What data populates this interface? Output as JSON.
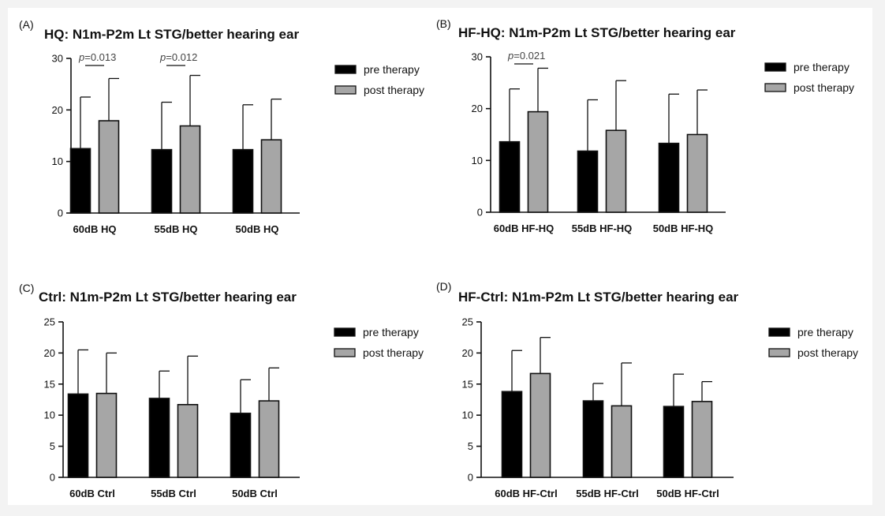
{
  "colors": {
    "pre": "#000000",
    "post": "#a6a6a6",
    "axis": "#111111"
  },
  "chart_data": [
    {
      "type": "bar",
      "panel": "(A)",
      "title": "HQ: N1m-P2m Lt STG/better hearing ear",
      "categories": [
        "60dB HQ",
        "55dB HQ",
        "50dB HQ"
      ],
      "ylim": [
        0,
        30
      ],
      "yticks": [
        0,
        10,
        20,
        30
      ],
      "legend_position": "top-right",
      "series": [
        {
          "name": "pre therapy",
          "values": [
            12.5,
            12.3,
            12.3
          ],
          "error": [
            10.0,
            9.2,
            8.7
          ]
        },
        {
          "name": "post therapy",
          "values": [
            17.9,
            16.9,
            14.2
          ],
          "error": [
            8.2,
            9.8,
            7.9
          ]
        }
      ],
      "annotations": [
        {
          "category_index": 0,
          "text_prefix": "p",
          "text": "=0.013"
        },
        {
          "category_index": 1,
          "text_prefix": "p",
          "text": "=0.012"
        }
      ]
    },
    {
      "type": "bar",
      "panel": "(B)",
      "title": "HF-HQ: N1m-P2m Lt STG/better hearing ear",
      "categories": [
        "60dB HF-HQ",
        "55dB HF-HQ",
        "50dB HF-HQ"
      ],
      "ylim": [
        0,
        30
      ],
      "yticks": [
        0,
        10,
        20,
        30
      ],
      "legend_position": "top-right",
      "series": [
        {
          "name": "pre therapy",
          "values": [
            13.6,
            11.8,
            13.3
          ],
          "error": [
            10.2,
            9.9,
            9.5
          ]
        },
        {
          "name": "post therapy",
          "values": [
            19.4,
            15.8,
            15.0
          ],
          "error": [
            8.4,
            9.6,
            8.6
          ]
        }
      ],
      "annotations": [
        {
          "category_index": 0,
          "text_prefix": "p",
          "text": "=0.021"
        }
      ]
    },
    {
      "type": "bar",
      "panel": "(C)",
      "title": "Ctrl: N1m-P2m Lt STG/better hearing ear",
      "categories": [
        "60dB Ctrl",
        "55dB Ctrl",
        "50dB Ctrl"
      ],
      "ylim": [
        0,
        25
      ],
      "yticks": [
        0,
        5,
        10,
        15,
        20,
        25
      ],
      "legend_position": "top-right",
      "series": [
        {
          "name": "pre therapy",
          "values": [
            13.4,
            12.7,
            10.3
          ],
          "error": [
            7.1,
            4.4,
            5.4
          ]
        },
        {
          "name": "post therapy",
          "values": [
            13.5,
            11.7,
            12.3
          ],
          "error": [
            6.5,
            7.8,
            5.3
          ]
        }
      ],
      "annotations": []
    },
    {
      "type": "bar",
      "panel": "(D)",
      "title": "HF-Ctrl: N1m-P2m Lt STG/better hearing ear",
      "categories": [
        "60dB HF-Ctrl",
        "55dB HF-Ctrl",
        "50dB HF-Ctrl"
      ],
      "ylim": [
        0,
        25
      ],
      "yticks": [
        0,
        5,
        10,
        15,
        20,
        25
      ],
      "legend_position": "top-right",
      "series": [
        {
          "name": "pre therapy",
          "values": [
            13.8,
            12.3,
            11.4
          ],
          "error": [
            6.6,
            2.8,
            5.2
          ]
        },
        {
          "name": "post therapy",
          "values": [
            16.7,
            11.5,
            12.2
          ],
          "error": [
            5.8,
            6.9,
            3.2
          ]
        }
      ],
      "annotations": []
    }
  ]
}
